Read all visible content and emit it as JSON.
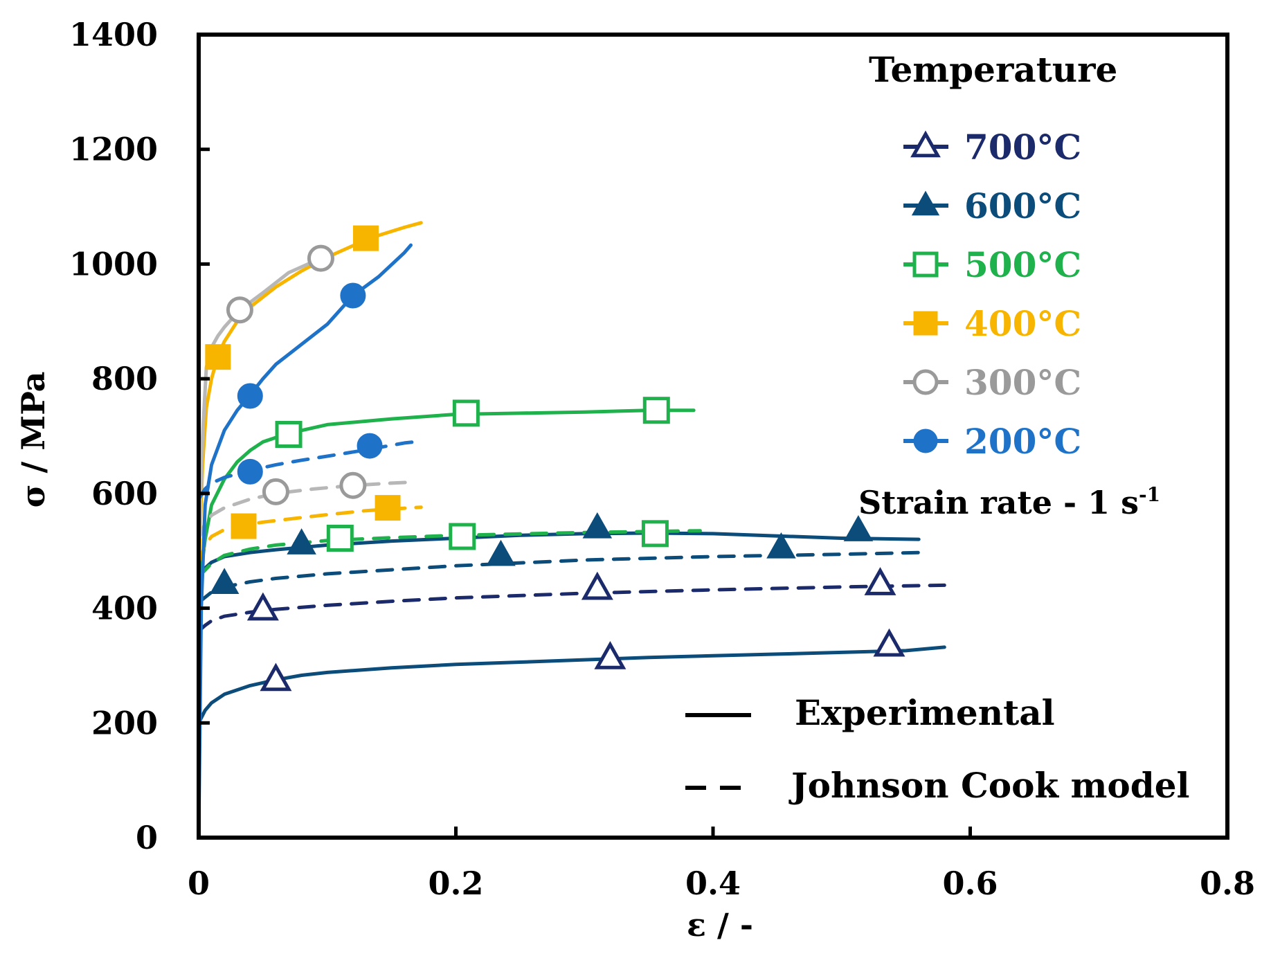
{
  "chart_data": {
    "type": "line",
    "title": "",
    "xlabel": "ε / -",
    "ylabel": "σ / MPa",
    "xlim": [
      0,
      0.8
    ],
    "ylim": [
      0,
      1400
    ],
    "x_ticks": [
      "0",
      "0.2",
      "0.4",
      "0.6",
      "0.8"
    ],
    "y_ticks": [
      "0",
      "200",
      "400",
      "600",
      "800",
      "1000",
      "1200",
      "1400"
    ],
    "grid": false,
    "legend": {
      "title": "Temperature",
      "placement": "top-right",
      "entries": [
        {
          "label": "700°C",
          "marker": "triangle-open",
          "color": "#1b2a6b"
        },
        {
          "label": "600°C",
          "marker": "triangle-filled",
          "color": "#0b4c7a"
        },
        {
          "label": "500°C",
          "marker": "square-open",
          "color": "#1fb14b"
        },
        {
          "label": "400°C",
          "marker": "square-filled",
          "color": "#f7b500"
        },
        {
          "label": "300°C",
          "marker": "circle-open",
          "color": "#9a9a9a"
        },
        {
          "label": "200°C",
          "marker": "circle-filled",
          "color": "#1e73c9"
        }
      ]
    },
    "strain_rate_base": "Strain rate - 1 s",
    "strain_rate_exp": "-1",
    "style_legend": {
      "experimental": "Experimental",
      "model": "Johnson Cook model"
    },
    "series": [
      {
        "name": "700°C",
        "kind": "experimental",
        "color": "#0b4c7a",
        "marker": "triangle-open",
        "marker_color": "#1b2a6b",
        "x": [
          0.0,
          0.005,
          0.01,
          0.02,
          0.04,
          0.06,
          0.08,
          0.1,
          0.15,
          0.2,
          0.25,
          0.3,
          0.35,
          0.4,
          0.45,
          0.5,
          0.55,
          0.58
        ],
        "y": [
          200,
          222,
          235,
          250,
          265,
          275,
          283,
          288,
          296,
          302,
          306,
          310,
          314,
          317,
          320,
          323,
          326,
          332
        ],
        "markers_x": [
          0.06,
          0.32,
          0.537
        ],
        "markers_y": [
          275,
          313,
          335
        ]
      },
      {
        "name": "700°C",
        "kind": "model",
        "color": "#1b2a6b",
        "marker": "triangle-open",
        "marker_color": "#1b2a6b",
        "x": [
          0.0,
          0.005,
          0.01,
          0.02,
          0.04,
          0.06,
          0.1,
          0.15,
          0.2,
          0.3,
          0.4,
          0.5,
          0.58
        ],
        "y": [
          360,
          370,
          378,
          386,
          393,
          398,
          405,
          412,
          418,
          426,
          432,
          437,
          440
        ],
        "markers_x": [
          0.05,
          0.31,
          0.53
        ],
        "markers_y": [
          398,
          434,
          442
        ]
      },
      {
        "name": "600°C",
        "kind": "experimental",
        "color": "#0b4c7a",
        "marker": "triangle-filled",
        "marker_color": "#0b4c7a",
        "x": [
          0.0,
          0.005,
          0.01,
          0.02,
          0.04,
          0.06,
          0.08,
          0.1,
          0.15,
          0.2,
          0.25,
          0.3,
          0.35,
          0.4,
          0.45,
          0.5,
          0.56
        ],
        "y": [
          455,
          470,
          480,
          490,
          497,
          502,
          506,
          510,
          517,
          522,
          527,
          530,
          531,
          530,
          526,
          522,
          520
        ],
        "markers_x": [
          0.02,
          0.08,
          0.235,
          0.31,
          0.453,
          0.513
        ],
        "markers_y": [
          443,
          512,
          492,
          540,
          505,
          535
        ]
      },
      {
        "name": "600°C",
        "kind": "model",
        "color": "#0b4c7a",
        "marker": "triangle-filled",
        "marker_color": "#0b4c7a",
        "x": [
          0.0,
          0.01,
          0.02,
          0.04,
          0.06,
          0.1,
          0.15,
          0.2,
          0.3,
          0.4,
          0.5,
          0.56
        ],
        "y": [
          410,
          428,
          437,
          446,
          452,
          460,
          467,
          474,
          484,
          490,
          494,
          497
        ]
      },
      {
        "name": "500°C",
        "kind": "experimental",
        "color": "#1fb14b",
        "marker": "square-open",
        "marker_color": "#1fb14b",
        "x": [
          0.0,
          0.005,
          0.01,
          0.02,
          0.03,
          0.04,
          0.05,
          0.07,
          0.1,
          0.15,
          0.2,
          0.25,
          0.3,
          0.35,
          0.385
        ],
        "y": [
          430,
          520,
          580,
          625,
          655,
          675,
          690,
          705,
          720,
          730,
          738,
          740,
          742,
          745,
          745
        ],
        "markers_x": [
          0.07,
          0.208,
          0.356
        ],
        "markers_y": [
          703,
          740,
          745
        ]
      },
      {
        "name": "500°C",
        "kind": "model",
        "color": "#1fb14b",
        "marker": "square-open",
        "marker_color": "#1fb14b",
        "x": [
          0.0,
          0.01,
          0.02,
          0.04,
          0.06,
          0.1,
          0.15,
          0.2,
          0.3,
          0.39
        ],
        "y": [
          455,
          478,
          492,
          503,
          510,
          518,
          523,
          527,
          532,
          535
        ],
        "markers_x": [
          0.11,
          0.205,
          0.355
        ],
        "markers_y": [
          522,
          525,
          530
        ]
      },
      {
        "name": "400°C",
        "kind": "experimental",
        "color": "#f7b500",
        "marker": "square-filled",
        "marker_color": "#f7b500",
        "x": [
          0.0,
          0.003,
          0.006,
          0.01,
          0.015,
          0.02,
          0.03,
          0.04,
          0.06,
          0.08,
          0.1,
          0.12,
          0.14,
          0.16,
          0.173
        ],
        "y": [
          470,
          650,
          750,
          800,
          840,
          865,
          900,
          925,
          960,
          988,
          1012,
          1032,
          1050,
          1064,
          1072
        ],
        "markers_x": [
          0.015,
          0.13
        ],
        "markers_y": [
          838,
          1045
        ]
      },
      {
        "name": "400°C",
        "kind": "model",
        "color": "#f7b500",
        "marker": "square-filled",
        "marker_color": "#f7b500",
        "x": [
          0.0,
          0.005,
          0.01,
          0.02,
          0.035,
          0.05,
          0.08,
          0.1,
          0.13,
          0.15,
          0.173
        ],
        "y": [
          480,
          510,
          525,
          537,
          545,
          550,
          558,
          563,
          570,
          573,
          576
        ],
        "markers_x": [
          0.035,
          0.147
        ],
        "markers_y": [
          543,
          575
        ]
      },
      {
        "name": "300°C",
        "kind": "experimental",
        "color": "#b7b7b7",
        "marker": "circle-open",
        "marker_color": "#9a9a9a",
        "x": [
          0.0,
          0.003,
          0.006,
          0.01,
          0.015,
          0.02,
          0.032,
          0.05,
          0.07,
          0.095
        ],
        "y": [
          500,
          700,
          820,
          855,
          875,
          890,
          920,
          950,
          985,
          1010
        ],
        "markers_x": [
          0.032,
          0.095
        ],
        "markers_y": [
          920,
          1010
        ]
      },
      {
        "name": "300°C",
        "kind": "model",
        "color": "#b7b7b7",
        "marker": "circle-open",
        "marker_color": "#9a9a9a",
        "x": [
          0.0,
          0.005,
          0.01,
          0.02,
          0.04,
          0.06,
          0.09,
          0.12,
          0.15,
          0.168
        ],
        "y": [
          520,
          548,
          562,
          575,
          590,
          600,
          608,
          614,
          618,
          620
        ],
        "markers_x": [
          0.06,
          0.12
        ],
        "markers_y": [
          603,
          614
        ]
      },
      {
        "name": "200°C",
        "kind": "experimental",
        "color": "#1e73c9",
        "marker": "circle-filled",
        "marker_color": "#1e73c9",
        "x": [
          0.0,
          0.002,
          0.005,
          0.01,
          0.02,
          0.03,
          0.04,
          0.05,
          0.06,
          0.08,
          0.1,
          0.12,
          0.14,
          0.16,
          0.165
        ],
        "y": [
          0,
          400,
          580,
          650,
          710,
          745,
          772,
          800,
          825,
          860,
          895,
          945,
          978,
          1020,
          1033
        ],
        "markers_x": [
          0.04,
          0.12
        ],
        "markers_y": [
          770,
          945
        ]
      },
      {
        "name": "200°C",
        "kind": "model",
        "color": "#1e73c9",
        "marker": "circle-filled",
        "marker_color": "#1e73c9",
        "x": [
          0.0,
          0.005,
          0.01,
          0.02,
          0.04,
          0.06,
          0.08,
          0.1,
          0.13,
          0.16,
          0.168
        ],
        "y": [
          590,
          608,
          618,
          628,
          640,
          650,
          658,
          665,
          676,
          688,
          690
        ],
        "markers_x": [
          0.04,
          0.133
        ],
        "markers_y": [
          638,
          683
        ]
      }
    ]
  }
}
